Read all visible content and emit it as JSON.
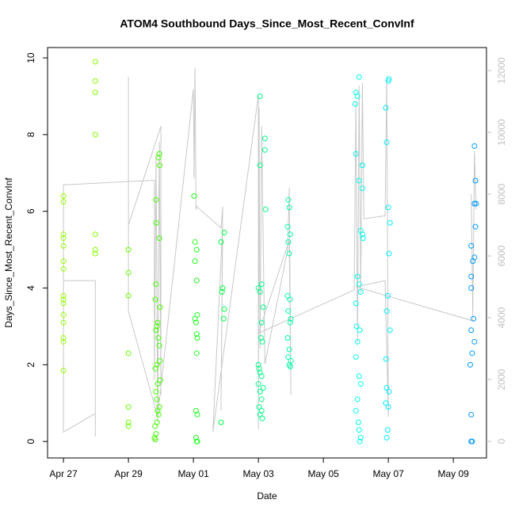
{
  "chart_data": {
    "type": "scatter",
    "title": "ATOM4 Southbound Days_Since_Most_Recent_ConvInf",
    "x_label": "Date",
    "y_label": "Days_Since_Most_Recent_ConvInf",
    "xlim": [
      -0.49,
      13.02
    ],
    "xticks": [
      {
        "value": 0,
        "label": "Apr 27"
      },
      {
        "value": 2,
        "label": "Apr 29"
      },
      {
        "value": 4,
        "label": "May 01"
      },
      {
        "value": 6,
        "label": "May 03"
      },
      {
        "value": 8,
        "label": "May 05"
      },
      {
        "value": 10,
        "label": "May 07"
      },
      {
        "value": 12,
        "label": "May 09"
      }
    ],
    "ylim": [
      -0.43,
      10.27
    ],
    "yticks": [
      0,
      2,
      4,
      6,
      8,
      10
    ],
    "y2lim": [
      -538,
      12744
    ],
    "y2ticks": [
      0,
      2000,
      4000,
      6000,
      8000,
      10000,
      12000
    ],
    "series": [
      {
        "color": "#99ff00",
        "x": [
          0,
          0,
          0,
          0,
          0,
          0,
          0,
          0,
          0,
          0,
          0,
          0,
          0,
          0,
          0
        ],
        "values": [
          6.4,
          6.25,
          5.4,
          5.3,
          5.1,
          4.7,
          4.5,
          3.8,
          3.7,
          3.6,
          3.3,
          3.1,
          2.7,
          2.6,
          1.85
        ]
      },
      {
        "color": "#88ff00",
        "x": [
          0.98,
          0.98,
          0.98,
          0.98,
          0.98,
          0.98,
          0.98
        ],
        "values": [
          9.9,
          9.4,
          9.1,
          8.0,
          5.4,
          5.0,
          4.9
        ]
      },
      {
        "color": "#66ff00",
        "x": [
          2.0,
          2.0,
          2.0,
          2.0,
          2.0,
          2.0,
          2.0
        ],
        "values": [
          5.0,
          4.4,
          3.8,
          2.3,
          0.9,
          0.5,
          0.4
        ]
      },
      {
        "color": "#44ff00",
        "x": [
          2.95,
          2.93,
          2.96,
          2.85,
          2.86,
          2.95,
          2.85,
          2.83,
          2.97,
          2.9,
          2.88,
          2.85,
          2.92,
          2.95,
          2.97,
          2.88,
          2.83,
          2.98,
          2.9,
          2.85,
          2.87,
          2.95,
          2.9,
          2.93,
          2.88,
          2.82,
          2.85,
          2.8,
          2.83
        ],
        "values": [
          7.5,
          7.4,
          7.2,
          6.3,
          5.7,
          5.3,
          4.1,
          3.7,
          3.5,
          3.1,
          3.0,
          2.9,
          2.7,
          2.5,
          2.1,
          2.0,
          1.9,
          1.6,
          1.5,
          1.3,
          1.1,
          0.9,
          0.8,
          0.7,
          0.5,
          0.4,
          0.2,
          0.1,
          0.05
        ]
      },
      {
        "color": "#22ff22",
        "x": [
          4.02,
          4.05,
          4.1,
          4.05,
          4.1,
          4.12,
          4.05,
          4.08,
          4.1,
          4.12,
          4.1,
          4.08,
          4.12,
          4.08,
          4.12,
          4.1
        ],
        "values": [
          6.4,
          5.2,
          5.0,
          4.7,
          4.2,
          3.3,
          3.2,
          3.1,
          2.8,
          2.7,
          2.3,
          0.8,
          0.7,
          0.1,
          0.0,
          0.0
        ]
      },
      {
        "color": "#00ff44",
        "x": [
          4.95,
          4.85,
          4.9,
          4.88,
          4.95,
          4.93,
          4.85
        ],
        "values": [
          5.45,
          5.2,
          4.0,
          3.9,
          3.45,
          3.2,
          0.5
        ]
      },
      {
        "color": "#00ff88",
        "x": [
          6.05,
          6.2,
          6.2,
          6.05,
          6.22,
          6.1,
          6.0,
          6.05,
          6.15,
          6.1,
          6.08,
          6.12,
          6.0,
          6.02,
          6.05,
          6.1,
          6.0,
          6.15,
          6.05,
          6.1,
          6.02,
          6.1,
          6.05,
          6.12
        ],
        "values": [
          9.0,
          7.9,
          7.6,
          7.2,
          6.05,
          4.1,
          4.0,
          3.9,
          3.5,
          3.1,
          2.7,
          2.6,
          2.0,
          1.9,
          1.8,
          1.7,
          1.5,
          1.4,
          1.3,
          1.1,
          0.9,
          0.8,
          0.7,
          0.6
        ]
      },
      {
        "color": "#00ffaa",
        "x": [
          6.92,
          6.95,
          6.9,
          6.98,
          6.92,
          6.95,
          6.9,
          6.97,
          6.92,
          7.0,
          6.98,
          6.9,
          6.95,
          6.92,
          7.0,
          6.95,
          6.98
        ],
        "values": [
          6.3,
          6.1,
          5.6,
          5.4,
          5.2,
          4.9,
          3.8,
          3.7,
          3.4,
          3.2,
          3.1,
          2.7,
          2.4,
          2.2,
          2.1,
          2.0,
          1.95
        ]
      },
      {
        "color": "#00ffee",
        "x": [
          9.1,
          9.0,
          9.05,
          8.98,
          9.0,
          9.2,
          9.1,
          9.2,
          9.15,
          9.2,
          9.22,
          9.05,
          9.1,
          9.15,
          9.0,
          9.02,
          9.12,
          9.05,
          9.0,
          9.1,
          9.15,
          9.05,
          9.0,
          9.08,
          9.1,
          9.15,
          9.12
        ],
        "values": [
          9.5,
          9.1,
          9.0,
          8.8,
          7.5,
          7.2,
          6.8,
          6.6,
          5.5,
          5.4,
          5.3,
          4.3,
          4.1,
          3.9,
          3.6,
          3.0,
          2.9,
          2.6,
          2.2,
          1.7,
          1.5,
          1.1,
          0.8,
          0.5,
          0.3,
          0.1,
          0.0
        ]
      },
      {
        "color": "#00eeff",
        "x": [
          10.02,
          10.0,
          9.92,
          9.95,
          10.0,
          10.05,
          10.02,
          9.98,
          9.95,
          10.05,
          9.93,
          9.95,
          10.02,
          9.92,
          10.0,
          9.98,
          9.95
        ],
        "values": [
          9.45,
          9.4,
          8.7,
          7.8,
          6.1,
          5.7,
          4.9,
          3.8,
          3.4,
          2.9,
          2.15,
          1.4,
          1.3,
          1.0,
          0.9,
          0.3,
          0.1
        ]
      },
      {
        "color": "#0099ff",
        "x": [
          12.65,
          12.68,
          12.65,
          12.7,
          12.68,
          12.55,
          12.65,
          12.6,
          12.55,
          12.55,
          12.62,
          12.55,
          12.65,
          12.58,
          12.52,
          12.55,
          12.55,
          12.58
        ],
        "values": [
          7.7,
          6.8,
          6.2,
          6.2,
          5.6,
          5.1,
          4.8,
          4.7,
          4.3,
          4.0,
          3.2,
          2.9,
          2.6,
          2.3,
          2.0,
          0.7,
          0.0,
          0.0
        ]
      },
      {
        "color": "#c8c8c8",
        "type": "line",
        "axis": "y2",
        "x": [
          0,
          0,
          0.98,
          0.98,
          0.98,
          0,
          0,
          2.8,
          2.8,
          2.85,
          2.9,
          2.95,
          3.0,
          3.0,
          2.0,
          2.0,
          2.0,
          2.9,
          4.0,
          4.02,
          4.05,
          4.08,
          4.1,
          4.85,
          4.9,
          4.85,
          4.9,
          4.6,
          6.0,
          6.0,
          6.02,
          6.05,
          6.1,
          6.2,
          6.9,
          6.95,
          7.0,
          6.95,
          6.0,
          8.95,
          9.0,
          9.05,
          9.1,
          9.15,
          9.2,
          9.25,
          9.9,
          9.95,
          10.0,
          9.9,
          9.0,
          12.6,
          12.55,
          12.6,
          12.65,
          12.7
        ],
        "values": [
          300,
          5200,
          5200,
          150,
          900,
          300,
          8300,
          8450,
          2000,
          9300,
          600,
          9700,
          1500,
          10200,
          7000,
          11800,
          4200,
          800,
          11400,
          8500,
          12100,
          7500,
          7600,
          6900,
          7600,
          1000,
          7000,
          300,
          11200,
          400,
          10800,
          3000,
          10200,
          2500,
          6200,
          8200,
          1500,
          6500,
          3500,
          4900,
          11000,
          3200,
          11500,
          4800,
          11600,
          7200,
          7300,
          11800,
          800,
          5200,
          5000,
          3900,
          8000,
          4200,
          9400,
          7500
        ]
      }
    ]
  }
}
